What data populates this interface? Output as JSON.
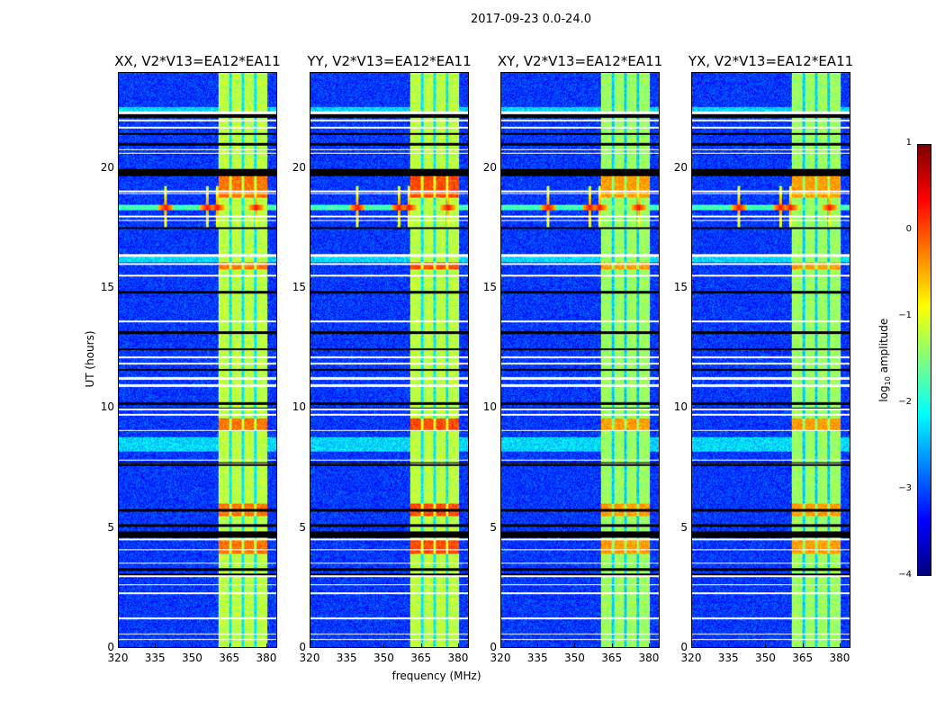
{
  "chart_data": {
    "type": "heatmap",
    "title": "2017-09-23 0.0-24.0",
    "xlabel": "frequency (MHz)",
    "ylabel": "UT (hours)",
    "xlim": [
      320,
      384.4
    ],
    "ylim": [
      0,
      24
    ],
    "xticks": [
      "320",
      "335",
      "350",
      "365",
      "380"
    ],
    "yticks": [
      "0",
      "5",
      "10",
      "15",
      "20"
    ],
    "colorbar": {
      "label_main": "log",
      "label_sub": "10",
      "label_rest": " amplitude",
      "range": [
        -4,
        1
      ],
      "ticks": [
        "1",
        "0",
        "−1",
        "−2",
        "−3",
        "−4"
      ],
      "colormap": "jet"
    },
    "panels": [
      {
        "title": "XX, V2*V13=EA12*EA11",
        "band_level": -1.2,
        "bright_level": -0.2
      },
      {
        "title": "YY, V2*V13=EA12*EA11",
        "band_level": -1.2,
        "bright_level": 0.0
      },
      {
        "title": "XY, V2*V13=EA12*EA11",
        "band_level": -1.35,
        "bright_level": -0.4
      },
      {
        "title": "YX, V2*V13=EA12*EA11",
        "band_level": -1.35,
        "bright_level": -0.4
      }
    ],
    "background_level": -3.1,
    "strong_band_mhz": [
      360.7,
      380.4
    ],
    "band_gaps_mhz": [
      365.5,
      370.5,
      375.6
    ],
    "rfi_line_ut": 18.4,
    "rfi_spots_mhz": [
      339,
      356,
      360,
      376
    ],
    "bright_intervals_ut": [
      [
        9.1,
        9.6
      ],
      [
        15.8,
        16.1
      ],
      [
        18.8,
        20.0
      ],
      [
        3.9,
        4.5
      ],
      [
        5.5,
        6.0
      ]
    ],
    "white_rows_ut": [
      [
        22.3,
        22.4
      ],
      [
        22.0,
        22.05
      ],
      [
        21.7,
        21.75
      ],
      [
        20.8,
        20.83
      ],
      [
        20.65,
        20.68
      ],
      [
        19.05,
        19.1
      ],
      [
        18.95,
        18.98
      ],
      [
        18.0,
        18.05
      ],
      [
        17.85,
        17.88
      ],
      [
        16.35,
        16.45
      ],
      [
        15.98,
        16.05
      ],
      [
        15.5,
        15.58
      ],
      [
        13.6,
        13.65
      ],
      [
        12.1,
        12.15
      ],
      [
        11.85,
        11.9
      ],
      [
        11.2,
        11.3
      ],
      [
        10.9,
        11.0
      ],
      [
        9.9,
        10.0
      ],
      [
        9.7,
        9.75
      ],
      [
        9.05,
        9.1
      ],
      [
        7.8,
        7.85
      ],
      [
        4.5,
        4.55
      ],
      [
        4.05,
        4.1
      ],
      [
        3.5,
        3.55
      ],
      [
        2.95,
        3.0
      ],
      [
        2.6,
        2.65
      ],
      [
        2.25,
        2.3
      ],
      [
        1.2,
        1.25
      ],
      [
        0.55,
        0.6
      ],
      [
        0.3,
        0.35
      ]
    ],
    "black_rows_ut": [
      [
        22.15,
        22.28
      ],
      [
        21.45,
        21.5
      ],
      [
        21.0,
        21.1
      ],
      [
        19.7,
        20.0
      ],
      [
        17.5,
        17.55
      ],
      [
        14.8,
        14.9
      ],
      [
        13.1,
        13.2
      ],
      [
        12.45,
        12.5
      ],
      [
        11.55,
        11.65
      ],
      [
        10.15,
        10.25
      ],
      [
        9.95,
        10.02
      ],
      [
        7.7,
        7.75
      ],
      [
        7.6,
        7.65
      ],
      [
        5.7,
        5.8
      ],
      [
        5.05,
        5.15
      ],
      [
        4.6,
        4.85
      ],
      [
        3.2,
        3.3
      ],
      [
        3.0,
        3.08
      ]
    ],
    "cyan_rows_ut": [
      [
        16.1,
        16.35
      ],
      [
        8.2,
        8.8
      ],
      [
        22.4,
        22.6
      ]
    ]
  }
}
